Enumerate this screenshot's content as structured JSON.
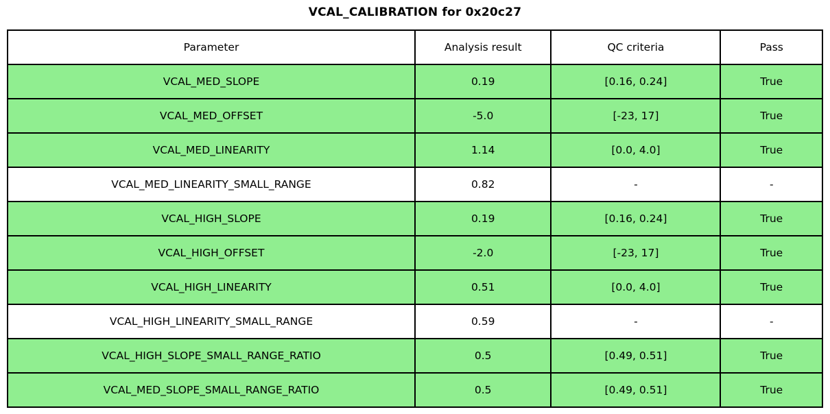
{
  "title": "VCAL_CALIBRATION for 0x20c27",
  "colors": {
    "pass_row_bg": "#90EE90",
    "neutral_row_bg": "#FFFFFF",
    "header_bg": "#FFFFFF",
    "border": "#000000",
    "text": "#000000"
  },
  "table": {
    "columns": [
      "Parameter",
      "Analysis result",
      "QC criteria",
      "Pass"
    ],
    "rows": [
      {
        "parameter": "VCAL_MED_SLOPE",
        "result": "0.19",
        "criteria": "[0.16, 0.24]",
        "pass": "True",
        "highlight": true
      },
      {
        "parameter": "VCAL_MED_OFFSET",
        "result": "-5.0",
        "criteria": "[-23, 17]",
        "pass": "True",
        "highlight": true
      },
      {
        "parameter": "VCAL_MED_LINEARITY",
        "result": "1.14",
        "criteria": "[0.0, 4.0]",
        "pass": "True",
        "highlight": true
      },
      {
        "parameter": "VCAL_MED_LINEARITY_SMALL_RANGE",
        "result": "0.82",
        "criteria": "-",
        "pass": "-",
        "highlight": false
      },
      {
        "parameter": "VCAL_HIGH_SLOPE",
        "result": "0.19",
        "criteria": "[0.16, 0.24]",
        "pass": "True",
        "highlight": true
      },
      {
        "parameter": "VCAL_HIGH_OFFSET",
        "result": "-2.0",
        "criteria": "[-23, 17]",
        "pass": "True",
        "highlight": true
      },
      {
        "parameter": "VCAL_HIGH_LINEARITY",
        "result": "0.51",
        "criteria": "[0.0, 4.0]",
        "pass": "True",
        "highlight": true
      },
      {
        "parameter": "VCAL_HIGH_LINEARITY_SMALL_RANGE",
        "result": "0.59",
        "criteria": "-",
        "pass": "-",
        "highlight": false
      },
      {
        "parameter": "VCAL_HIGH_SLOPE_SMALL_RANGE_RATIO",
        "result": "0.5",
        "criteria": "[0.49, 0.51]",
        "pass": "True",
        "highlight": true
      },
      {
        "parameter": "VCAL_MED_SLOPE_SMALL_RANGE_RATIO",
        "result": "0.5",
        "criteria": "[0.49, 0.51]",
        "pass": "True",
        "highlight": true
      }
    ]
  },
  "chart_data": {
    "type": "table",
    "title": "VCAL_CALIBRATION for 0x20c27",
    "columns": [
      "Parameter",
      "Analysis result",
      "QC criteria",
      "Pass"
    ],
    "rows": [
      [
        "VCAL_MED_SLOPE",
        "0.19",
        "[0.16, 0.24]",
        "True"
      ],
      [
        "VCAL_MED_OFFSET",
        "-5.0",
        "[-23, 17]",
        "True"
      ],
      [
        "VCAL_MED_LINEARITY",
        "1.14",
        "[0.0, 4.0]",
        "True"
      ],
      [
        "VCAL_MED_LINEARITY_SMALL_RANGE",
        "0.82",
        "-",
        "-"
      ],
      [
        "VCAL_HIGH_SLOPE",
        "0.19",
        "[0.16, 0.24]",
        "True"
      ],
      [
        "VCAL_HIGH_OFFSET",
        "-2.0",
        "[-23, 17]",
        "True"
      ],
      [
        "VCAL_HIGH_LINEARITY",
        "0.51",
        "[0.0, 4.0]",
        "True"
      ],
      [
        "VCAL_HIGH_LINEARITY_SMALL_RANGE",
        "0.59",
        "-",
        "-"
      ],
      [
        "VCAL_HIGH_SLOPE_SMALL_RANGE_RATIO",
        "0.5",
        "[0.49, 0.51]",
        "True"
      ],
      [
        "VCAL_MED_SLOPE_SMALL_RANGE_RATIO",
        "0.5",
        "[0.49, 0.51]",
        "True"
      ]
    ],
    "highlighted_row_indices": [
      0,
      1,
      2,
      4,
      5,
      6,
      8,
      9
    ],
    "highlight_color": "#90EE90",
    "layout": "title centered above table; all cells center-aligned; black cell borders"
  }
}
